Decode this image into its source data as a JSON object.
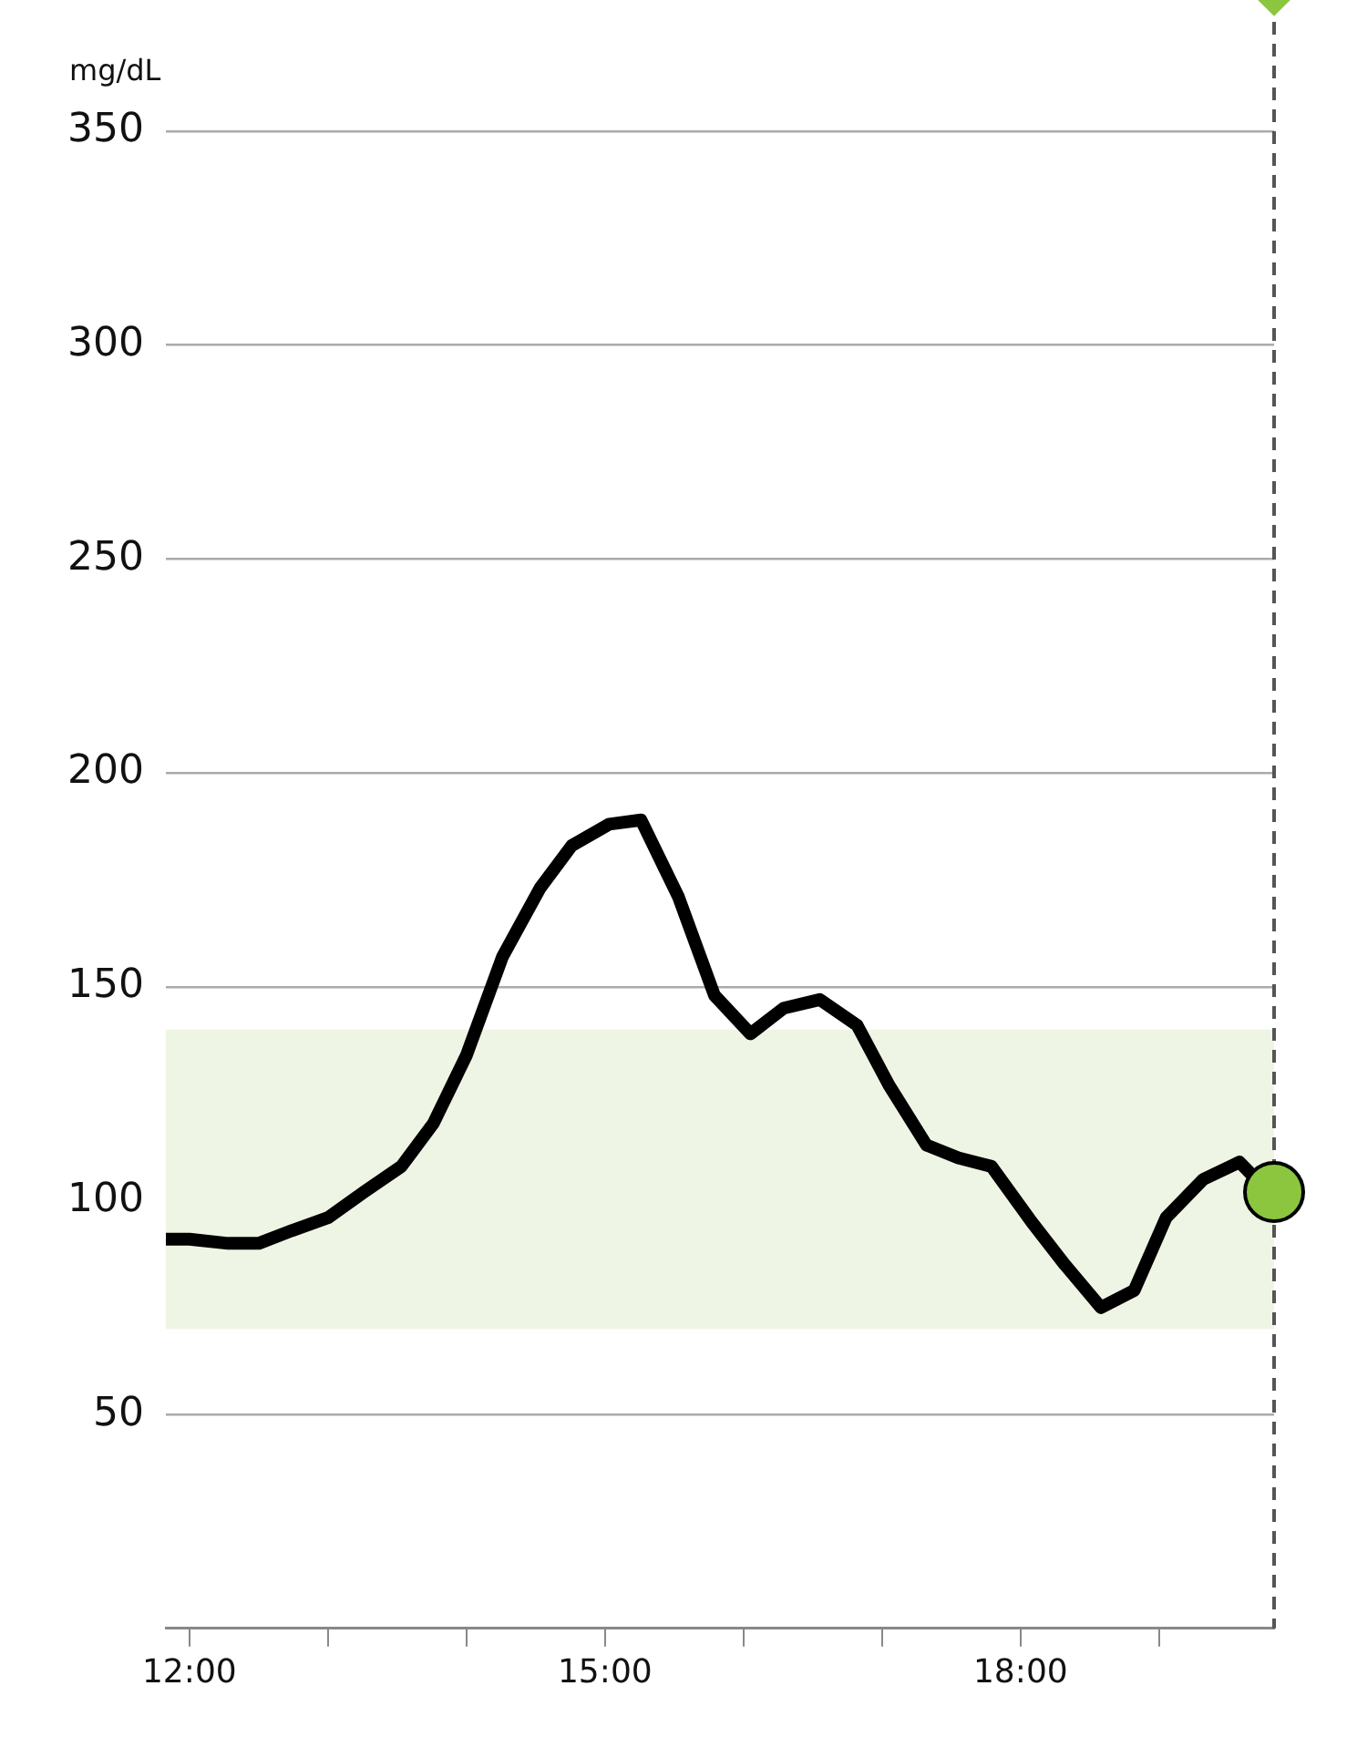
{
  "chart_data": {
    "type": "line",
    "ylabel": "mg/dL",
    "xlim": [
      11.83,
      19.83
    ],
    "ylim": [
      0,
      350
    ],
    "xticks": [
      {
        "value": 12,
        "label": "12:00"
      },
      {
        "value": 13,
        "label": null
      },
      {
        "value": 14,
        "label": null
      },
      {
        "value": 15,
        "label": "15:00"
      },
      {
        "value": 16,
        "label": null
      },
      {
        "value": 17,
        "label": null
      },
      {
        "value": 18,
        "label": "18:00"
      },
      {
        "value": 19,
        "label": null
      }
    ],
    "yticks": [
      50,
      100,
      150,
      200,
      250,
      300,
      350
    ],
    "grid": "y",
    "legend": false,
    "marker": "none",
    "line_style": "solid",
    "series": [
      {
        "color": "#000000",
        "x": [
          11.83,
          12.0,
          12.28,
          12.5,
          12.74,
          13.0,
          13.26,
          13.53,
          13.76,
          14.0,
          14.26,
          14.53,
          14.76,
          15.03,
          15.26,
          15.53,
          15.79,
          16.05,
          16.29,
          16.55,
          16.82,
          17.05,
          17.32,
          17.55,
          17.79,
          18.08,
          18.32,
          18.58,
          18.82,
          19.05,
          19.32,
          19.58,
          19.7
        ],
        "values": [
          91,
          91,
          90,
          90,
          93,
          96,
          102,
          108,
          118,
          134,
          157,
          173,
          183,
          188,
          189,
          171,
          148,
          139,
          145,
          147,
          141,
          127,
          113,
          110,
          108,
          95,
          85,
          75,
          79,
          96,
          105,
          109,
          105
        ]
      },
      {
        "type": "scatter",
        "color": "#8cc63f",
        "marker": "circle",
        "x": [
          19.83
        ],
        "values": [
          102
        ]
      }
    ],
    "bands": [
      {
        "axis": "y",
        "from": 70,
        "to": 140,
        "color": "#eef5e4"
      }
    ],
    "ref_lines": [
      {
        "axis": "x",
        "value": 19.83,
        "color": "#555555",
        "line_style": "dashed"
      }
    ]
  }
}
